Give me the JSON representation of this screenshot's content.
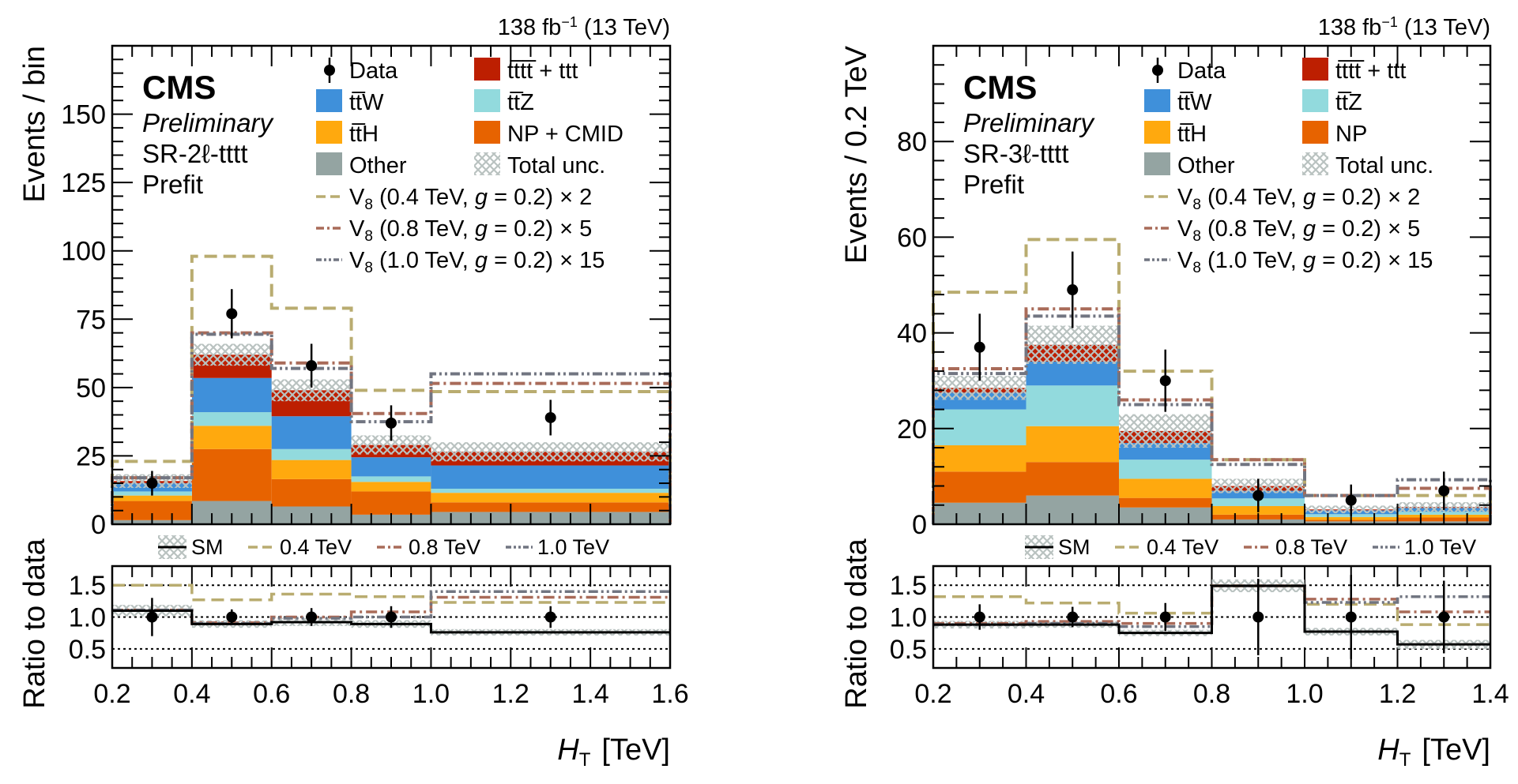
{
  "colors": {
    "tttt_ttt": "#bd1f01",
    "ttW": "#3f90da",
    "ttZ": "#92dadd",
    "ttH": "#ffa90e",
    "NP": "#e76300",
    "Other": "#94a4a2",
    "unc": "#b9c2c0",
    "V8_04": "#b9ac70",
    "V8_08": "#a96b59",
    "V8_10": "#717581",
    "SM": "#000000"
  },
  "chart_data": [
    {
      "type": "bar",
      "stacked": true,
      "panel": "left",
      "lumi_label": "138 fb⁻¹ (13 TeV)",
      "cms_label": "CMS",
      "cms_sublabel": "Preliminary",
      "region_label": "SR-2ℓ-t̅t̅t̅t̅",
      "region_label_plain": "SR-2ℓ-tttt",
      "fit_label": "Prefit",
      "ylabel": "Events / bin",
      "xlabel": "H_T [TeV]",
      "xlabel_main": "H",
      "xlabel_sub": "T",
      "xlabel_unit": "[TeV]",
      "ratio_ylabel": "Ratio to data",
      "bin_edges": [
        0.2,
        0.4,
        0.6,
        0.8,
        1.0,
        1.6
      ],
      "xlim": [
        0.2,
        1.6
      ],
      "ylim": [
        0,
        175
      ],
      "yticks": [
        0,
        25,
        50,
        75,
        100,
        125,
        150
      ],
      "xticks": [
        0.2,
        0.4,
        0.6,
        0.8,
        1.0,
        1.2,
        1.4,
        1.6
      ],
      "xtick_labels": [
        "0.2",
        "0.4",
        "0.6",
        "0.8",
        "1.0",
        "1.2",
        "1.4",
        "1.6"
      ],
      "stack_order": [
        "Other",
        "NP",
        "ttH",
        "ttZ",
        "ttW",
        "tttt_ttt"
      ],
      "series": [
        {
          "key": "Other",
          "name": "Other",
          "values": [
            1.5,
            8.5,
            6.5,
            3.5,
            4.5
          ]
        },
        {
          "key": "NP",
          "name": "NP + CMID",
          "values": [
            7.0,
            19.0,
            10.0,
            8.5,
            3.5
          ]
        },
        {
          "key": "ttH",
          "name": "tt̅H",
          "values": [
            2.0,
            8.5,
            7.0,
            3.5,
            3.5
          ]
        },
        {
          "key": "ttZ",
          "name": "tt̅Z",
          "values": [
            1.5,
            5.0,
            4.0,
            2.0,
            1.5
          ]
        },
        {
          "key": "ttW",
          "name": "tt̅W",
          "values": [
            3.0,
            12.5,
            12.0,
            7.0,
            8.5
          ]
        },
        {
          "key": "tttt_ttt",
          "name": "tt̅tt̅ + ttt",
          "values": [
            0.8,
            8.5,
            9.5,
            4.5,
            5.0
          ]
        }
      ],
      "total_unc": [
        2.5,
        4.0,
        4.0,
        3.5,
        3.5
      ],
      "data": {
        "x": [
          0.3,
          0.5,
          0.7,
          0.9,
          1.3
        ],
        "y": [
          15,
          77,
          58,
          37,
          39
        ],
        "err": [
          4.5,
          9.0,
          8.0,
          6.5,
          6.5
        ]
      },
      "signals": [
        {
          "key": "V8_04",
          "name": "V8 (0.4 TeV, g = 0.2) × 2",
          "short": "0.4 TeV",
          "style": "dashed",
          "values": [
            23,
            98,
            79,
            49,
            48.5
          ]
        },
        {
          "key": "V8_08",
          "name": "V8 (0.8 TeV, g = 0.2) × 5",
          "short": "0.8 TeV",
          "style": "dashdot",
          "values": [
            17,
            70,
            59,
            40.5,
            51.5
          ]
        },
        {
          "key": "V8_10",
          "name": "V8 (1.0 TeV, g = 0.2) × 15",
          "short": "1.0 TeV",
          "style": "dashdotdot",
          "values": [
            17,
            69.5,
            57,
            37.5,
            55
          ]
        }
      ],
      "ratio": {
        "ylim": [
          0.2,
          1.8
        ],
        "yticks": [
          0.5,
          1.0,
          1.5
        ],
        "ytick_labels": [
          "0.5",
          "1.0",
          "1.5"
        ],
        "grid_lines": [
          0.5,
          1.0,
          1.5
        ],
        "SM": [
          1.1,
          0.89,
          0.92,
          0.89,
          0.76
        ],
        "SM_unc": [
          0.09,
          0.06,
          0.06,
          0.06,
          0.05
        ],
        "V8_04": [
          1.5,
          1.27,
          1.36,
          1.32,
          1.23
        ],
        "V8_08": [
          1.11,
          0.91,
          1.0,
          1.08,
          1.31
        ],
        "V8_10": [
          1.11,
          0.9,
          0.98,
          1.0,
          1.4
        ],
        "data_err": [
          0.3,
          0.12,
          0.14,
          0.17,
          0.17
        ]
      },
      "legend": {
        "data": "Data",
        "entries": [
          {
            "key": "tttt_ttt",
            "label": "tt̅tt̅ + ttt"
          },
          {
            "key": "ttW",
            "label": "tt̅W"
          },
          {
            "key": "ttZ",
            "label": "tt̅Z"
          },
          {
            "key": "ttH",
            "label": "tt̅H"
          },
          {
            "key": "NP",
            "label": "NP + CMID"
          },
          {
            "key": "Other",
            "label": "Other"
          },
          {
            "key": "unc",
            "label": "Total unc."
          }
        ],
        "signals": [
          {
            "key": "V8_04",
            "pre": "V",
            "sub": "8",
            "post": " (0.4 TeV, ",
            "g": "g",
            "post2": " = 0.2) × 2"
          },
          {
            "key": "V8_08",
            "pre": "V",
            "sub": "8",
            "post": " (0.8 TeV, ",
            "g": "g",
            "post2": " = 0.2) × 5"
          },
          {
            "key": "V8_10",
            "pre": "V",
            "sub": "8",
            "post": " (1.0 TeV, ",
            "g": "g",
            "post2": " = 0.2) × 15"
          }
        ],
        "ratio_legend": [
          "SM",
          "0.4 TeV",
          "0.8 TeV",
          "1.0 TeV"
        ],
        "placement": "top-right"
      }
    },
    {
      "type": "bar",
      "stacked": true,
      "panel": "right",
      "lumi_label": "138 fb⁻¹ (13 TeV)",
      "cms_label": "CMS",
      "cms_sublabel": "Preliminary",
      "region_label": "SR-3ℓ-t̅t̅t̅t̅",
      "region_label_plain": "SR-3ℓ-tttt",
      "fit_label": "Prefit",
      "ylabel": "Events / 0.2 TeV",
      "xlabel": "H_T [TeV]",
      "xlabel_main": "H",
      "xlabel_sub": "T",
      "xlabel_unit": "[TeV]",
      "ratio_ylabel": "Ratio to data",
      "bin_edges": [
        0.2,
        0.4,
        0.6,
        0.8,
        1.0,
        1.2,
        1.4
      ],
      "xlim": [
        0.2,
        1.4
      ],
      "ylim": [
        0,
        100
      ],
      "yticks": [
        0,
        20,
        40,
        60,
        80
      ],
      "xticks": [
        0.2,
        0.4,
        0.6,
        0.8,
        1.0,
        1.2,
        1.4
      ],
      "xtick_labels": [
        "0.2",
        "0.4",
        "0.6",
        "0.8",
        "1.0",
        "1.2",
        "1.4"
      ],
      "stack_order": [
        "Other",
        "NP",
        "ttH",
        "ttZ",
        "ttW",
        "tttt_ttt"
      ],
      "series": [
        {
          "key": "Other",
          "name": "Other",
          "values": [
            4.5,
            6.0,
            3.5,
            1.0,
            0.6,
            0.6
          ]
        },
        {
          "key": "NP",
          "name": "NP",
          "values": [
            6.5,
            7.0,
            2.0,
            1.0,
            0.3,
            0.8
          ]
        },
        {
          "key": "ttH",
          "name": "tt̅H",
          "values": [
            5.5,
            7.5,
            4.0,
            1.8,
            0.6,
            0.6
          ]
        },
        {
          "key": "ttZ",
          "name": "tt̅Z",
          "values": [
            7.5,
            8.5,
            4.0,
            1.6,
            0.6,
            0.6
          ]
        },
        {
          "key": "ttW",
          "name": "tt̅W",
          "values": [
            3.5,
            5.0,
            3.5,
            1.6,
            0.8,
            0.8
          ]
        },
        {
          "key": "tttt_ttt",
          "name": "tt̅tt̅ + ttt",
          "values": [
            1.0,
            3.5,
            2.5,
            1.0,
            0.2,
            0.2
          ]
        }
      ],
      "total_unc": [
        2.5,
        4.0,
        3.5,
        1.5,
        0.8,
        1.0
      ],
      "data": {
        "x": [
          0.3,
          0.5,
          0.7,
          0.9,
          1.1,
          1.3
        ],
        "y": [
          37,
          49,
          30,
          6,
          5,
          7
        ],
        "err": [
          7.0,
          8.0,
          6.5,
          3.5,
          3.3,
          4.0
        ]
      },
      "signals": [
        {
          "key": "V8_04",
          "name": "V8 (0.4 TeV, g = 0.2) × 2",
          "short": "0.4 TeV",
          "style": "dashed",
          "values": [
            48.5,
            59.5,
            32,
            13.5,
            6.0,
            6.0
          ]
        },
        {
          "key": "V8_08",
          "name": "V8 (0.8 TeV, g = 0.2) × 5",
          "short": "0.8 TeV",
          "style": "dashdot",
          "values": [
            32.5,
            45,
            26,
            13.5,
            6.0,
            7.5
          ]
        },
        {
          "key": "V8_10",
          "name": "V8 (1.0 TeV, g = 0.2) × 15",
          "short": "1.0 TeV",
          "style": "dashdotdot",
          "values": [
            31.5,
            43.5,
            25,
            12.5,
            6.0,
            9.3
          ]
        }
      ],
      "ratio": {
        "ylim": [
          0.2,
          1.8
        ],
        "yticks": [
          0.5,
          1.0,
          1.5
        ],
        "ytick_labels": [
          "0.5",
          "1.0",
          "1.5"
        ],
        "grid_lines": [
          0.5,
          1.0,
          1.5
        ],
        "SM": [
          0.88,
          0.88,
          0.75,
          1.49,
          0.77,
          0.57
        ],
        "SM_unc": [
          0.06,
          0.05,
          0.05,
          0.1,
          0.06,
          0.07
        ],
        "V8_04": [
          1.32,
          1.22,
          1.06,
          1.49,
          1.2,
          0.88
        ],
        "V8_08": [
          0.9,
          0.93,
          0.9,
          1.49,
          1.28,
          1.08
        ],
        "V8_10": [
          0.88,
          0.9,
          0.85,
          1.49,
          1.23,
          1.32
        ],
        "data_err": [
          0.2,
          0.16,
          0.22,
          0.6,
          0.66,
          0.57
        ]
      },
      "legend": {
        "data": "Data",
        "entries": [
          {
            "key": "tttt_ttt",
            "label": "tt̅tt̅ + ttt"
          },
          {
            "key": "ttW",
            "label": "tt̅W"
          },
          {
            "key": "ttZ",
            "label": "tt̅Z"
          },
          {
            "key": "ttH",
            "label": "tt̅H"
          },
          {
            "key": "NP",
            "label": "NP"
          },
          {
            "key": "Other",
            "label": "Other"
          },
          {
            "key": "unc",
            "label": "Total unc."
          }
        ],
        "signals": [
          {
            "key": "V8_04",
            "pre": "V",
            "sub": "8",
            "post": " (0.4 TeV, ",
            "g": "g",
            "post2": " = 0.2) × 2"
          },
          {
            "key": "V8_08",
            "pre": "V",
            "sub": "8",
            "post": " (0.8 TeV, ",
            "g": "g",
            "post2": " = 0.2) × 5"
          },
          {
            "key": "V8_10",
            "pre": "V",
            "sub": "8",
            "post": " (1.0 TeV, ",
            "g": "g",
            "post2": " = 0.2) × 15"
          }
        ],
        "ratio_legend": [
          "SM",
          "0.4 TeV",
          "0.8 TeV",
          "1.0 TeV"
        ],
        "placement": "top-right"
      }
    }
  ]
}
